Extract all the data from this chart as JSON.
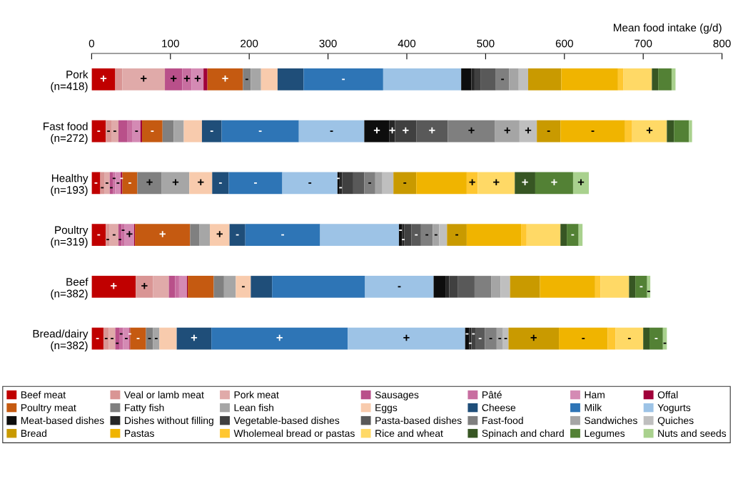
{
  "chart_data": {
    "type": "bar",
    "orientation": "horizontal",
    "stacked": true,
    "xlabel": "Mean food intake (g/d)",
    "xlim": [
      0,
      800
    ],
    "xticks": [
      0,
      100,
      200,
      300,
      400,
      500,
      600,
      700,
      800
    ],
    "grid": false,
    "legend": "bottom",
    "categories": [
      "Pork\n(n=418)",
      "Fast food\n(n=272)",
      "Healthy\n(n=193)",
      "Poultry\n(n=319)",
      "Beef\n(n=382)",
      "Bread/dairy\n(n=382)"
    ],
    "series": [
      {
        "name": "Beef meat",
        "color": "#c00000",
        "values": [
          30,
          18,
          11,
          18,
          56,
          15
        ],
        "value_labels": [
          "+",
          "-",
          "-",
          "-",
          "+",
          "-"
        ]
      },
      {
        "name": "Veal or lamb meat",
        "color": "#d99594",
        "values": [
          9,
          7,
          5,
          5,
          22,
          7
        ],
        "value_labels": [
          null,
          "-",
          "-",
          "-",
          "+",
          "-"
        ]
      },
      {
        "name": "Pork meat",
        "color": "#e0aaa9",
        "values": [
          54,
          9,
          7,
          11,
          20,
          8
        ],
        "value_labels": [
          "+",
          "-",
          "-",
          "-",
          null,
          "-"
        ]
      },
      {
        "name": "Sausages",
        "color": "#b9508a",
        "values": [
          22,
          11,
          4,
          4,
          8,
          5
        ],
        "value_labels": [
          "+",
          null,
          "-",
          "-",
          null,
          "-"
        ]
      },
      {
        "name": "Pâté",
        "color": "#c86ea0",
        "values": [
          12,
          7,
          3,
          4,
          5,
          5
        ],
        "value_labels": [
          "+",
          null,
          "-",
          "-",
          null,
          "-"
        ]
      },
      {
        "name": "Ham",
        "color": "#d48ab4",
        "values": [
          15,
          10,
          7,
          12,
          10,
          8
        ],
        "value_labels": [
          "+",
          "-",
          "-",
          "+",
          null,
          "-"
        ]
      },
      {
        "name": "Offal",
        "color": "#a0003a",
        "values": [
          5,
          2,
          2,
          1,
          1,
          1
        ],
        "value_labels": [
          null,
          null,
          "-",
          null,
          null,
          "-"
        ]
      },
      {
        "name": "Poultry meat",
        "color": "#c55a11",
        "values": [
          45,
          26,
          19,
          70,
          33,
          20
        ],
        "value_labels": [
          "+",
          "-",
          "-",
          "+",
          null,
          "-"
        ]
      },
      {
        "name": "Fatty fish",
        "color": "#808080",
        "values": [
          10,
          14,
          31,
          12,
          13,
          9
        ],
        "value_labels": [
          "-",
          null,
          "+",
          null,
          null,
          "-"
        ]
      },
      {
        "name": "Lean fish",
        "color": "#a6a6a6",
        "values": [
          13,
          13,
          35,
          13,
          15,
          8
        ],
        "value_labels": [
          null,
          null,
          "+",
          null,
          null,
          "-"
        ]
      },
      {
        "name": "Eggs",
        "color": "#f8cbad",
        "values": [
          21,
          23,
          29,
          25,
          19,
          22
        ],
        "value_labels": [
          null,
          null,
          "+",
          "+",
          "-",
          null
        ]
      },
      {
        "name": "Cheese",
        "color": "#1f4e79",
        "values": [
          33,
          25,
          21,
          20,
          27,
          44
        ],
        "value_labels": [
          null,
          "-",
          "-",
          "-",
          null,
          "+"
        ]
      },
      {
        "name": "Milk",
        "color": "#2e75b6",
        "values": [
          101,
          98,
          68,
          95,
          118,
          173
        ],
        "value_labels": [
          "-",
          "-",
          "-",
          "-",
          null,
          "+"
        ]
      },
      {
        "name": "Yogurts",
        "color": "#9dc3e6",
        "values": [
          99,
          83,
          70,
          100,
          87,
          149
        ],
        "value_labels": [
          null,
          "-",
          "-",
          null,
          "-",
          "+"
        ]
      },
      {
        "name": "Meat-based dishes",
        "color": "#0d0d0d",
        "values": [
          13,
          32,
          2,
          4,
          15,
          5
        ],
        "value_labels": [
          null,
          "+",
          "-",
          "-",
          null,
          "-"
        ]
      },
      {
        "name": "Dishes without filling",
        "color": "#262626",
        "values": [
          4,
          7,
          4,
          3,
          5,
          3
        ],
        "value_labels": [
          null,
          "+",
          "-",
          "-",
          null,
          "-"
        ]
      },
      {
        "name": "Vegetable-based dishes",
        "color": "#404040",
        "values": [
          8,
          27,
          14,
          9,
          11,
          5
        ],
        "value_labels": [
          null,
          "+",
          null,
          null,
          null,
          "-"
        ]
      },
      {
        "name": "Pasta-based dishes",
        "color": "#595959",
        "values": [
          19,
          40,
          14,
          12,
          21,
          12
        ],
        "value_labels": [
          null,
          "+",
          null,
          "-",
          null,
          "-"
        ]
      },
      {
        "name": "Fast-food",
        "color": "#7f7f7f",
        "values": [
          17,
          60,
          14,
          15,
          21,
          15
        ],
        "value_labels": [
          "-",
          "+",
          "-",
          "-",
          null,
          "-"
        ]
      },
      {
        "name": "Sandwiches",
        "color": "#a5a5a5",
        "values": [
          12,
          31,
          9,
          8,
          12,
          8
        ],
        "value_labels": [
          null,
          "+",
          null,
          "-",
          null,
          "-"
        ]
      },
      {
        "name": "Quiches",
        "color": "#bfbfbf",
        "values": [
          12,
          22,
          14,
          10,
          12,
          7
        ],
        "value_labels": [
          null,
          "+",
          null,
          null,
          null,
          "-"
        ]
      },
      {
        "name": "Bread",
        "color": "#c99a00",
        "values": [
          42,
          30,
          29,
          25,
          38,
          64
        ],
        "value_labels": [
          null,
          "-",
          "-",
          "-",
          null,
          "+"
        ]
      },
      {
        "name": "Pastas",
        "color": "#f0b400",
        "values": [
          72,
          82,
          64,
          69,
          70,
          62
        ],
        "value_labels": [
          null,
          "-",
          null,
          null,
          null,
          "-"
        ]
      },
      {
        "name": "Wholemeal bread or pastas",
        "color": "#ffc730",
        "values": [
          7,
          9,
          14,
          7,
          7,
          10
        ],
        "value_labels": [
          null,
          null,
          "+",
          null,
          null,
          null
        ]
      },
      {
        "name": "Rice and wheat",
        "color": "#ffd966",
        "values": [
          36,
          44,
          47,
          43,
          36,
          35
        ],
        "value_labels": [
          null,
          "+",
          "+",
          null,
          null,
          "-"
        ]
      },
      {
        "name": "Spinach and chard",
        "color": "#375623",
        "values": [
          8,
          9,
          26,
          8,
          8,
          8
        ],
        "value_labels": [
          null,
          null,
          "+",
          null,
          null,
          null
        ]
      },
      {
        "name": "Legumes",
        "color": "#538135",
        "values": [
          17,
          19,
          48,
          15,
          15,
          17
        ],
        "value_labels": [
          null,
          null,
          "+",
          "-",
          "-",
          "-"
        ]
      },
      {
        "name": "Nuts and seeds",
        "color": "#a9d18e",
        "values": [
          5,
          4,
          20,
          5,
          4,
          5
        ],
        "value_labels": [
          null,
          null,
          "+",
          null,
          "-",
          "-"
        ]
      }
    ]
  }
}
